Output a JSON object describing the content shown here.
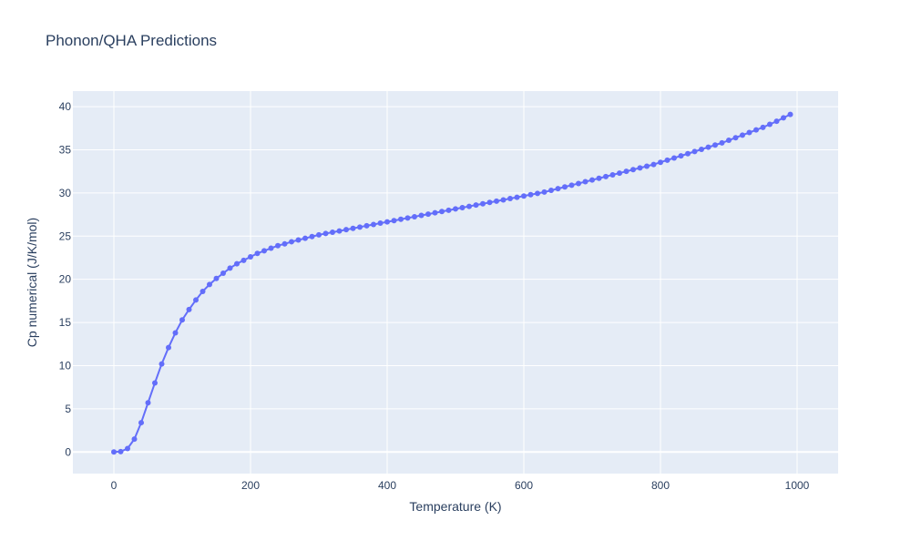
{
  "chart_data": {
    "type": "line",
    "title": "Phonon/QHA Predictions",
    "xlabel": "Temperature (K)",
    "ylabel": "Cp numerical (J/K/mol)",
    "xlim": [
      -60,
      1060
    ],
    "ylim": [
      -2.5,
      41.8
    ],
    "x_ticks": [
      0,
      200,
      400,
      600,
      800,
      1000
    ],
    "y_ticks": [
      0,
      5,
      10,
      15,
      20,
      25,
      30,
      35,
      40
    ],
    "grid": true,
    "legend": "none",
    "series": [
      {
        "mode": "lines+markers",
        "color": "#636efa",
        "x": [
          0,
          10,
          20,
          30,
          40,
          50,
          60,
          70,
          80,
          90,
          100,
          110,
          120,
          130,
          140,
          150,
          160,
          170,
          180,
          190,
          200,
          210,
          220,
          230,
          240,
          250,
          260,
          270,
          280,
          290,
          300,
          310,
          320,
          330,
          340,
          350,
          360,
          370,
          380,
          390,
          400,
          410,
          420,
          430,
          440,
          450,
          460,
          470,
          480,
          490,
          500,
          510,
          520,
          530,
          540,
          550,
          560,
          570,
          580,
          590,
          600,
          610,
          620,
          630,
          640,
          650,
          660,
          670,
          680,
          690,
          700,
          710,
          720,
          730,
          740,
          750,
          760,
          770,
          780,
          790,
          800,
          810,
          820,
          830,
          840,
          850,
          860,
          870,
          880,
          890,
          900,
          910,
          920,
          930,
          940,
          950,
          960,
          970,
          980,
          990
        ],
        "y": [
          0,
          0.05,
          0.4,
          1.5,
          3.4,
          5.7,
          8.0,
          10.2,
          12.1,
          13.8,
          15.3,
          16.5,
          17.6,
          18.6,
          19.4,
          20.1,
          20.7,
          21.3,
          21.8,
          22.2,
          22.6,
          23.0,
          23.3,
          23.6,
          23.9,
          24.1,
          24.35,
          24.55,
          24.75,
          24.95,
          25.15,
          25.3,
          25.45,
          25.6,
          25.75,
          25.9,
          26.05,
          26.2,
          26.35,
          26.5,
          26.65,
          26.8,
          26.95,
          27.1,
          27.25,
          27.4,
          27.55,
          27.7,
          27.85,
          28.0,
          28.15,
          28.3,
          28.45,
          28.6,
          28.75,
          28.9,
          29.05,
          29.2,
          29.35,
          29.5,
          29.65,
          29.8,
          29.95,
          30.1,
          30.3,
          30.5,
          30.7,
          30.9,
          31.1,
          31.3,
          31.5,
          31.7,
          31.9,
          32.1,
          32.3,
          32.5,
          32.7,
          32.9,
          33.1,
          33.3,
          33.55,
          33.8,
          34.05,
          34.3,
          34.55,
          34.8,
          35.05,
          35.3,
          35.55,
          35.8,
          36.1,
          36.4,
          36.7,
          37.0,
          37.3,
          37.6,
          37.95,
          38.3,
          38.7,
          39.1
        ]
      }
    ]
  }
}
